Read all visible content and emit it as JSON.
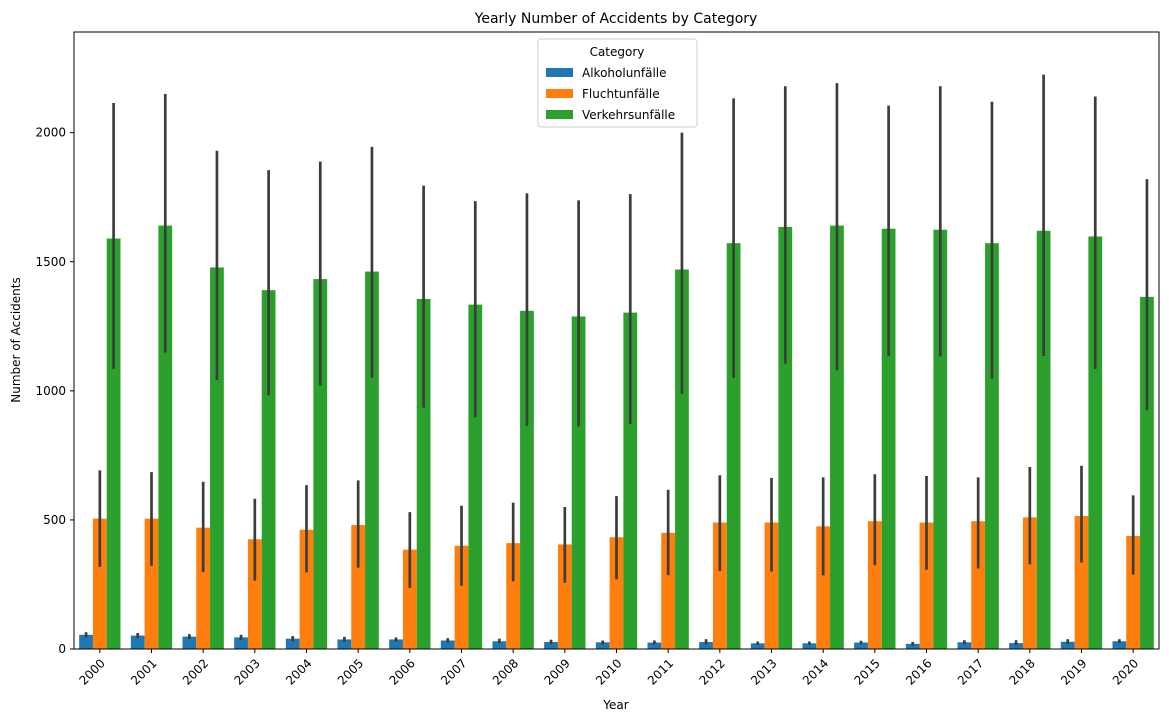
{
  "chart_data": {
    "type": "bar",
    "title": "Yearly Number of Accidents by Category",
    "xlabel": "Year",
    "ylabel": "Number of Accidents",
    "ylim": [
      0,
      2390
    ],
    "yticks": [
      0,
      500,
      1000,
      1500,
      2000
    ],
    "grid": false,
    "legend": {
      "title": "Category",
      "placement": "top-center"
    },
    "categories": [
      "2000",
      "2001",
      "2002",
      "2003",
      "2004",
      "2005",
      "2006",
      "2007",
      "2008",
      "2009",
      "2010",
      "2011",
      "2012",
      "2013",
      "2014",
      "2015",
      "2016",
      "2017",
      "2018",
      "2019",
      "2020"
    ],
    "series": [
      {
        "name": "Alkoholunfälle",
        "color": "#1f77b4",
        "values": [
          55,
          52,
          48,
          45,
          40,
          37,
          37,
          33,
          30,
          27,
          26,
          25,
          27,
          22,
          22,
          25,
          20,
          26,
          23,
          28,
          30
        ],
        "error_low": [
          45,
          42,
          38,
          35,
          30,
          28,
          28,
          25,
          22,
          19,
          18,
          18,
          18,
          16,
          16,
          18,
          14,
          19,
          14,
          19,
          23
        ],
        "error_high": [
          65,
          62,
          58,
          55,
          50,
          47,
          45,
          42,
          40,
          36,
          33,
          33,
          38,
          29,
          29,
          32,
          27,
          34,
          34,
          38,
          38
        ]
      },
      {
        "name": "Fluchtunfälle",
        "color": "#ff7f0e",
        "values": [
          505,
          505,
          470,
          425,
          462,
          480,
          385,
          400,
          410,
          405,
          433,
          450,
          490,
          490,
          475,
          495,
          490,
          495,
          510,
          515,
          438
        ],
        "error_low": [
          318,
          322,
          298,
          265,
          297,
          315,
          237,
          245,
          262,
          256,
          270,
          286,
          302,
          300,
          285,
          325,
          307,
          312,
          328,
          335,
          288
        ],
        "error_high": [
          692,
          685,
          648,
          582,
          635,
          653,
          530,
          555,
          567,
          550,
          592,
          617,
          673,
          663,
          665,
          677,
          670,
          665,
          705,
          710,
          595
        ]
      },
      {
        "name": "Verkehrsunfälle",
        "color": "#2ca02c",
        "values": [
          1590,
          1640,
          1478,
          1390,
          1433,
          1462,
          1356,
          1334,
          1310,
          1288,
          1303,
          1470,
          1572,
          1635,
          1640,
          1628,
          1624,
          1572,
          1620,
          1598,
          1364
        ],
        "error_low": [
          1085,
          1148,
          1042,
          983,
          1020,
          1050,
          935,
          898,
          865,
          862,
          872,
          988,
          1050,
          1105,
          1080,
          1135,
          1133,
          1046,
          1135,
          1085,
          925
        ],
        "error_high": [
          2115,
          2150,
          1930,
          1855,
          1888,
          1945,
          1795,
          1735,
          1765,
          1738,
          1762,
          2000,
          2133,
          2180,
          2192,
          2105,
          2180,
          2120,
          2225,
          2140,
          1820
        ]
      }
    ]
  }
}
